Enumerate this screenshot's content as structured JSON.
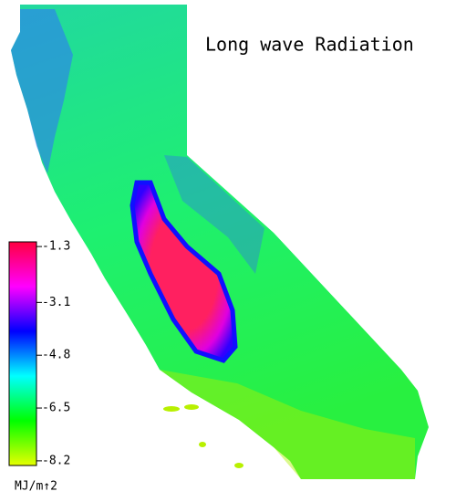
{
  "title": "Long wave Radiation",
  "colorbar": {
    "unit": "MJ/m↑2",
    "lim": [
      -8.35,
      -1.15
    ],
    "ticks": [
      -1.3,
      -3.1,
      -4.8,
      -6.5,
      -8.2
    ],
    "colors": [
      "#e6ff00",
      "#00ff00",
      "#00ffff",
      "#0000ff",
      "#ff00ff",
      "#ff0040"
    ]
  }
}
